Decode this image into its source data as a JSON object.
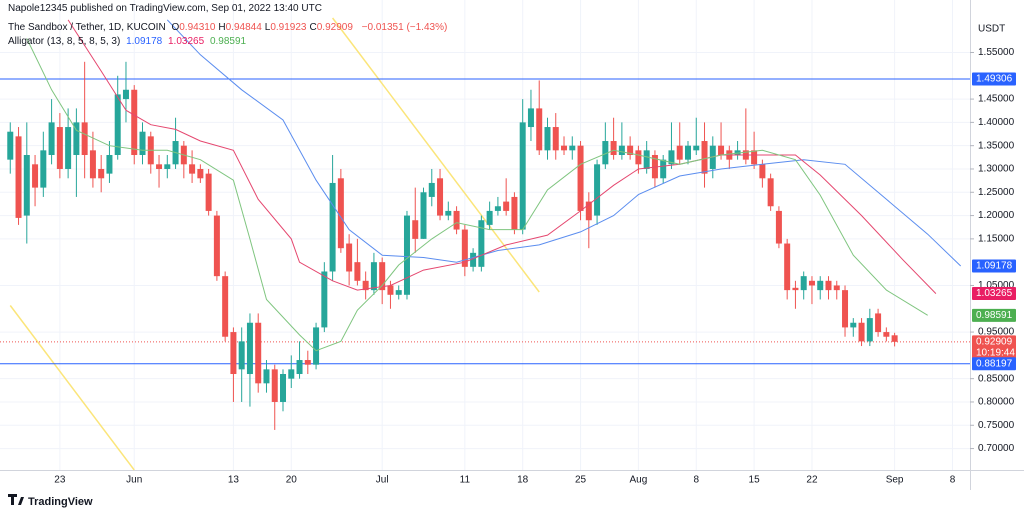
{
  "header": {
    "published": "Napole12345 published on TradingView.com, Sep 01, 2022 13:40 UTC"
  },
  "legend": {
    "symbol": "The Sandbox / Tether, 1D, KUCOIN",
    "ohlc": [
      {
        "key": "O",
        "value": "0.94310"
      },
      {
        "key": "H",
        "value": "0.94844"
      },
      {
        "key": "L",
        "value": "0.91923"
      },
      {
        "key": "C",
        "value": "0.92909"
      }
    ],
    "change": "−0.01351 (−1.43%)",
    "indicator": "Alligator (13, 8, 5, 8, 5, 3)"
  },
  "footer": {
    "brand": "TradingView"
  },
  "chart_data": {
    "type": "candlestick",
    "currency": "USDT",
    "up_color": "#26a69a",
    "down_color": "#ef5350",
    "grid": true,
    "xlim": [
      "May 16",
      "Sep 10"
    ],
    "ylim": [
      0.654,
      1.624
    ],
    "xticks": [
      {
        "value": "May 23",
        "label": "23"
      },
      {
        "value": "Jun 1",
        "label": "Jun"
      },
      {
        "value": "Jun 13",
        "label": "13"
      },
      {
        "value": "Jun 20",
        "label": "20"
      },
      {
        "value": "Jul 1",
        "label": "Jul"
      },
      {
        "value": "Jul 11",
        "label": "11"
      },
      {
        "value": "Jul 18",
        "label": "18"
      },
      {
        "value": "Jul 25",
        "label": "25"
      },
      {
        "value": "Aug 1",
        "label": "Aug"
      },
      {
        "value": "Aug 8",
        "label": "8"
      },
      {
        "value": "Aug 15",
        "label": "15"
      },
      {
        "value": "Aug 22",
        "label": "22"
      },
      {
        "value": "Sep 1",
        "label": "Sep"
      },
      {
        "value": "Sep 8",
        "label": "8"
      }
    ],
    "yticks": [
      {
        "value": 0.7,
        "label": "0.70000"
      },
      {
        "value": 0.75,
        "label": "0.75000"
      },
      {
        "value": 0.8,
        "label": "0.80000"
      },
      {
        "value": 0.85,
        "label": "0.85000"
      },
      {
        "value": 0.95,
        "label": "0.95000"
      },
      {
        "value": 1.05,
        "label": "1.05000"
      },
      {
        "value": 1.15,
        "label": "1.15000"
      },
      {
        "value": 1.2,
        "label": "1.20000"
      },
      {
        "value": 1.25,
        "label": "1.25000"
      },
      {
        "value": 1.3,
        "label": "1.30000"
      },
      {
        "value": 1.35,
        "label": "1.35000"
      },
      {
        "value": 1.4,
        "label": "1.40000"
      },
      {
        "value": 1.45,
        "label": "1.45000"
      },
      {
        "value": 1.55,
        "label": "1.55000"
      }
    ],
    "x": [
      "May 17",
      "May 18",
      "May 19",
      "May 20",
      "May 21",
      "May 22",
      "May 23",
      "May 24",
      "May 25",
      "May 26",
      "May 27",
      "May 28",
      "May 29",
      "May 30",
      "May 31",
      "Jun 1",
      "Jun 2",
      "Jun 3",
      "Jun 4",
      "Jun 5",
      "Jun 6",
      "Jun 7",
      "Jun 8",
      "Jun 9",
      "Jun 10",
      "Jun 11",
      "Jun 12",
      "Jun 13",
      "Jun 14",
      "Jun 15",
      "Jun 16",
      "Jun 17",
      "Jun 18",
      "Jun 19",
      "Jun 20",
      "Jun 21",
      "Jun 22",
      "Jun 23",
      "Jun 24",
      "Jun 25",
      "Jun 26",
      "Jun 27",
      "Jun 28",
      "Jun 29",
      "Jun 30",
      "Jul 1",
      "Jul 2",
      "Jul 3",
      "Jul 4",
      "Jul 5",
      "Jul 6",
      "Jul 7",
      "Jul 8",
      "Jul 9",
      "Jul 10",
      "Jul 11",
      "Jul 12",
      "Jul 13",
      "Jul 14",
      "Jul 15",
      "Jul 16",
      "Jul 17",
      "Jul 18",
      "Jul 19",
      "Jul 20",
      "Jul 21",
      "Jul 22",
      "Jul 23",
      "Jul 24",
      "Jul 25",
      "Jul 26",
      "Jul 27",
      "Jul 28",
      "Jul 29",
      "Jul 30",
      "Jul 31",
      "Aug 1",
      "Aug 2",
      "Aug 3",
      "Aug 4",
      "Aug 5",
      "Aug 6",
      "Aug 7",
      "Aug 8",
      "Aug 9",
      "Aug 10",
      "Aug 11",
      "Aug 12",
      "Aug 13",
      "Aug 14",
      "Aug 15",
      "Aug 16",
      "Aug 17",
      "Aug 18",
      "Aug 19",
      "Aug 20",
      "Aug 21",
      "Aug 22",
      "Aug 23",
      "Aug 24",
      "Aug 25",
      "Aug 26",
      "Aug 27",
      "Aug 28",
      "Aug 29",
      "Aug 30",
      "Aug 31",
      "Sep 1"
    ],
    "open": [
      1.32,
      1.37,
      1.2,
      1.31,
      1.26,
      1.33,
      1.39,
      1.3,
      1.33,
      1.4,
      1.34,
      1.3,
      1.29,
      1.33,
      1.45,
      1.47,
      1.33,
      1.37,
      1.31,
      1.3,
      1.31,
      1.35,
      1.31,
      1.3,
      1.29,
      1.2,
      1.07,
      0.95,
      0.87,
      0.86,
      0.97,
      0.84,
      0.87,
      0.8,
      0.85,
      0.86,
      0.89,
      0.88,
      0.96,
      1.08,
      1.28,
      1.14,
      1.1,
      1.06,
      1.04,
      1.1,
      1.05,
      1.03,
      1.03,
      1.19,
      1.15,
      1.24,
      1.28,
      1.2,
      1.21,
      1.17,
      1.09,
      1.09,
      1.18,
      1.21,
      1.23,
      1.24,
      1.17,
      1.39,
      1.43,
      1.34,
      1.39,
      1.35,
      1.34,
      1.35,
      1.23,
      1.2,
      1.31,
      1.36,
      1.33,
      1.35,
      1.34,
      1.3,
      1.33,
      1.28,
      1.31,
      1.35,
      1.32,
      1.34,
      1.36,
      1.3,
      1.35,
      1.34,
      1.33,
      1.34,
      1.34,
      1.31,
      1.28,
      1.21,
      1.14,
      1.045,
      1.04,
      1.06,
      1.04,
      1.06,
      1.05,
      1.04,
      0.96,
      0.97,
      0.93,
      0.99,
      0.95,
      0.9431
    ],
    "high": [
      1.4,
      1.39,
      1.4,
      1.33,
      1.38,
      1.45,
      1.42,
      1.43,
      1.43,
      1.53,
      1.38,
      1.33,
      1.36,
      1.5,
      1.53,
      1.48,
      1.4,
      1.38,
      1.33,
      1.33,
      1.41,
      1.36,
      1.34,
      1.31,
      1.3,
      1.21,
      1.08,
      0.96,
      0.96,
      0.99,
      0.99,
      0.89,
      0.88,
      0.87,
      0.9,
      0.93,
      0.91,
      0.97,
      1.1,
      1.33,
      1.3,
      1.16,
      1.15,
      1.08,
      1.12,
      1.11,
      1.06,
      1.05,
      1.21,
      1.26,
      1.26,
      1.3,
      1.3,
      1.23,
      1.22,
      1.18,
      1.13,
      1.2,
      1.23,
      1.24,
      1.28,
      1.25,
      1.45,
      1.47,
      1.49,
      1.41,
      1.42,
      1.37,
      1.37,
      1.36,
      1.25,
      1.32,
      1.4,
      1.41,
      1.4,
      1.37,
      1.35,
      1.36,
      1.34,
      1.33,
      1.4,
      1.4,
      1.36,
      1.41,
      1.4,
      1.37,
      1.4,
      1.35,
      1.36,
      1.43,
      1.38,
      1.32,
      1.29,
      1.22,
      1.15,
      1.06,
      1.08,
      1.07,
      1.07,
      1.07,
      1.06,
      1.05,
      0.98,
      0.98,
      1.0,
      1.0,
      0.96,
      0.94844
    ],
    "low": [
      1.29,
      1.18,
      1.14,
      1.22,
      1.24,
      1.31,
      1.28,
      1.28,
      1.24,
      1.28,
      1.26,
      1.25,
      1.27,
      1.32,
      1.4,
      1.31,
      1.31,
      1.29,
      1.26,
      1.28,
      1.3,
      1.28,
      1.27,
      1.27,
      1.2,
      1.06,
      0.93,
      0.8,
      0.8,
      0.79,
      0.82,
      0.82,
      0.74,
      0.78,
      0.83,
      0.85,
      0.86,
      0.87,
      0.95,
      1.06,
      1.12,
      1.05,
      1.05,
      1.02,
      1.03,
      1.01,
      1.0,
      1.02,
      1.02,
      1.12,
      1.15,
      1.22,
      1.19,
      1.19,
      1.16,
      1.07,
      1.08,
      1.08,
      1.17,
      1.2,
      1.2,
      1.16,
      1.16,
      1.36,
      1.33,
      1.32,
      1.32,
      1.33,
      1.32,
      1.19,
      1.13,
      1.18,
      1.3,
      1.32,
      1.32,
      1.32,
      1.29,
      1.29,
      1.26,
      1.27,
      1.3,
      1.31,
      1.31,
      1.33,
      1.26,
      1.28,
      1.32,
      1.3,
      1.32,
      1.31,
      1.3,
      1.26,
      1.21,
      1.13,
      1.02,
      1.0,
      1.02,
      1.01,
      1.02,
      1.02,
      1.02,
      0.94,
      0.94,
      0.92,
      0.92,
      0.94,
      0.93,
      0.91923
    ],
    "close": [
      1.38,
      1.195,
      1.33,
      1.26,
      1.34,
      1.4,
      1.3,
      1.39,
      1.4,
      1.33,
      1.28,
      1.28,
      1.33,
      1.46,
      1.47,
      1.33,
      1.38,
      1.31,
      1.3,
      1.31,
      1.36,
      1.31,
      1.29,
      1.28,
      1.21,
      1.07,
      0.94,
      0.86,
      0.93,
      0.97,
      0.84,
      0.87,
      0.8,
      0.86,
      0.87,
      0.89,
      0.88,
      0.96,
      1.08,
      1.27,
      1.13,
      1.08,
      1.06,
      1.04,
      1.1,
      1.04,
      1.03,
      1.04,
      1.2,
      1.15,
      1.25,
      1.27,
      1.2,
      1.21,
      1.17,
      1.09,
      1.12,
      1.19,
      1.21,
      1.22,
      1.21,
      1.17,
      1.4,
      1.43,
      1.34,
      1.39,
      1.34,
      1.34,
      1.35,
      1.21,
      1.19,
      1.31,
      1.36,
      1.33,
      1.35,
      1.33,
      1.31,
      1.34,
      1.28,
      1.32,
      1.34,
      1.32,
      1.35,
      1.35,
      1.29,
      1.35,
      1.33,
      1.32,
      1.34,
      1.32,
      1.31,
      1.28,
      1.22,
      1.14,
      1.04,
      1.04,
      1.07,
      1.05,
      1.06,
      1.04,
      1.04,
      0.96,
      0.97,
      0.93,
      0.98,
      0.95,
      0.94,
      0.92909
    ],
    "lines": [
      {
        "color": "#5b8def",
        "x": [
          "Jun 5",
          "Jun 9",
          "Jun 14",
          "Jun 19",
          "Jun 23",
          "Jun 27",
          "Jul 1",
          "Jul 6",
          "Jul 10",
          "Jul 15",
          "Jul 20",
          "Jul 25",
          "Jul 29",
          "Aug 1",
          "Aug 6",
          "Aug 11",
          "Aug 16",
          "Aug 21",
          "Aug 26",
          "Aug 31",
          "Sep 5",
          "Sep 9"
        ],
        "values": [
          1.62,
          1.545,
          1.47,
          1.405,
          1.276,
          1.17,
          1.115,
          1.11,
          1.1,
          1.125,
          1.137,
          1.165,
          1.2,
          1.245,
          1.285,
          1.3,
          1.31,
          1.32,
          1.31,
          1.235,
          1.16,
          1.09178
        ]
      },
      {
        "color": "#e5476f",
        "x": [
          "May 24",
          "May 28",
          "May 31",
          "Jun 3",
          "Jun 6",
          "Jun 9",
          "Jun 13",
          "Jun 16",
          "Jun 20",
          "Jun 21",
          "Jun 25",
          "Jun 28",
          "Jul 2",
          "Jul 6",
          "Jul 11",
          "Jul 16",
          "Jul 21",
          "Jul 25",
          "Jul 29",
          "Aug 1",
          "Aug 6",
          "Aug 11",
          "Aug 16",
          "Aug 20",
          "Aug 23",
          "Aug 28",
          "Sep 2",
          "Sep 6"
        ],
        "values": [
          1.62,
          1.51,
          1.426,
          1.395,
          1.385,
          1.36,
          1.34,
          1.235,
          1.15,
          1.1,
          1.06,
          1.04,
          1.05,
          1.083,
          1.1,
          1.137,
          1.158,
          1.21,
          1.265,
          1.3,
          1.31,
          1.33,
          1.33,
          1.33,
          1.287,
          1.2,
          1.105,
          1.03265
        ]
      },
      {
        "color": "#7fc57f",
        "x": [
          "May 19",
          "May 22",
          "May 25",
          "May 29",
          "Jun 2",
          "Jun 5",
          "Jun 9",
          "Jun 13",
          "Jun 15",
          "Jun 17",
          "Jun 21",
          "Jun 23",
          "Jun 26",
          "Jun 28",
          "Jul 1",
          "Jul 3",
          "Jul 7",
          "Jul 10",
          "Jul 14",
          "Jul 18",
          "Jul 21",
          "Jul 25",
          "Jul 29",
          "Aug 1",
          "Aug 6",
          "Aug 11",
          "Aug 16",
          "Aug 20",
          "Aug 23",
          "Aug 27",
          "Aug 31",
          "Sep 5"
        ],
        "values": [
          1.58,
          1.47,
          1.383,
          1.35,
          1.34,
          1.34,
          1.32,
          1.276,
          1.15,
          1.02,
          0.944,
          0.91,
          0.93,
          0.997,
          1.05,
          1.094,
          1.15,
          1.185,
          1.17,
          1.17,
          1.255,
          1.31,
          1.34,
          1.33,
          1.31,
          1.33,
          1.34,
          1.32,
          1.244,
          1.115,
          1.04,
          0.98591
        ]
      }
    ],
    "trendlines": [
      {
        "color": "#fbe57a",
        "x": [
          "Jun 25",
          "Jul 20"
        ],
        "values": [
          1.624,
          1.036
        ]
      },
      {
        "color": "#fbe57a",
        "x": [
          "May 17",
          "Jun 1"
        ],
        "values": [
          1.007,
          0.654
        ]
      }
    ],
    "price_markers": [
      {
        "value": 1.49306,
        "label": "1.49306",
        "color": "#2962ff",
        "hline": true
      },
      {
        "value": 1.09178,
        "label": "1.09178",
        "color": "#2962ff"
      },
      {
        "value": 1.03265,
        "label": "1.03265",
        "color": "#e91e63"
      },
      {
        "value": 0.98591,
        "label": "0.98591",
        "color": "#4caf50"
      },
      {
        "value": 0.92909,
        "label": "0.92909",
        "color": "#ef5350",
        "dotted": true,
        "countdown": "10:19:44"
      },
      {
        "value": 0.88197,
        "label": "0.88197",
        "color": "#2962ff",
        "hline": true
      }
    ]
  }
}
